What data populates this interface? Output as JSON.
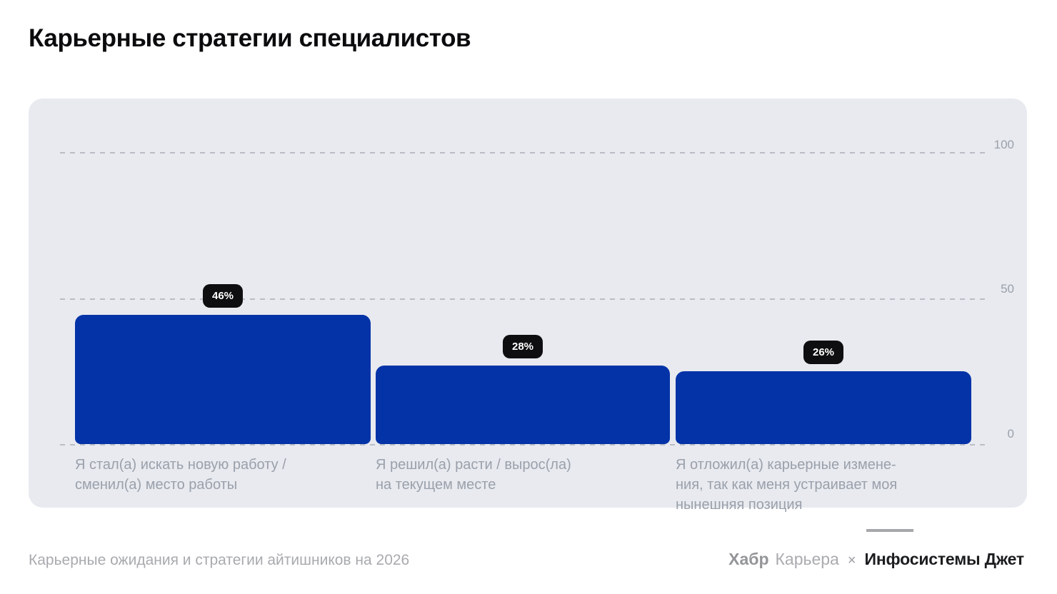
{
  "page": {
    "title": "Карьерные стратегии специалистов"
  },
  "chart_data": {
    "type": "bar",
    "title": "Карьерные стратегии специалистов",
    "categories": [
      "Я стал(а) искать новую работу /\nсменил(а) место работы",
      "Я решил(а) расти / вырос(ла)\nна текущем месте",
      "Я отложил(а) карьерные измене-\nния, так как меня устраивает моя\nнынешняя позиция"
    ],
    "values": [
      46,
      28,
      26
    ],
    "value_labels": [
      "46%",
      "28%",
      "26%"
    ],
    "xlabel": "",
    "ylabel": "",
    "ylim": [
      0,
      100
    ],
    "y_ticks": [
      "100",
      "50",
      "0"
    ],
    "grid": "horizontal-dashed",
    "legend": "none",
    "colors": {
      "bar": "#0433a8",
      "badge_bg": "#0e0e10",
      "badge_text": "#ffffff",
      "panel_bg": "#e8eaef",
      "gridline": "#b9bdc5",
      "tick_text": "#9aa0ab",
      "category_text": "#9aa0ab"
    }
  },
  "footer": {
    "source": "Карьерные ожидания и стратегии айтишников на 2026",
    "brand_habr": "Хабр",
    "brand_career": "Карьера",
    "separator": "×",
    "brand_partner": "Инфосистемы Джет"
  }
}
